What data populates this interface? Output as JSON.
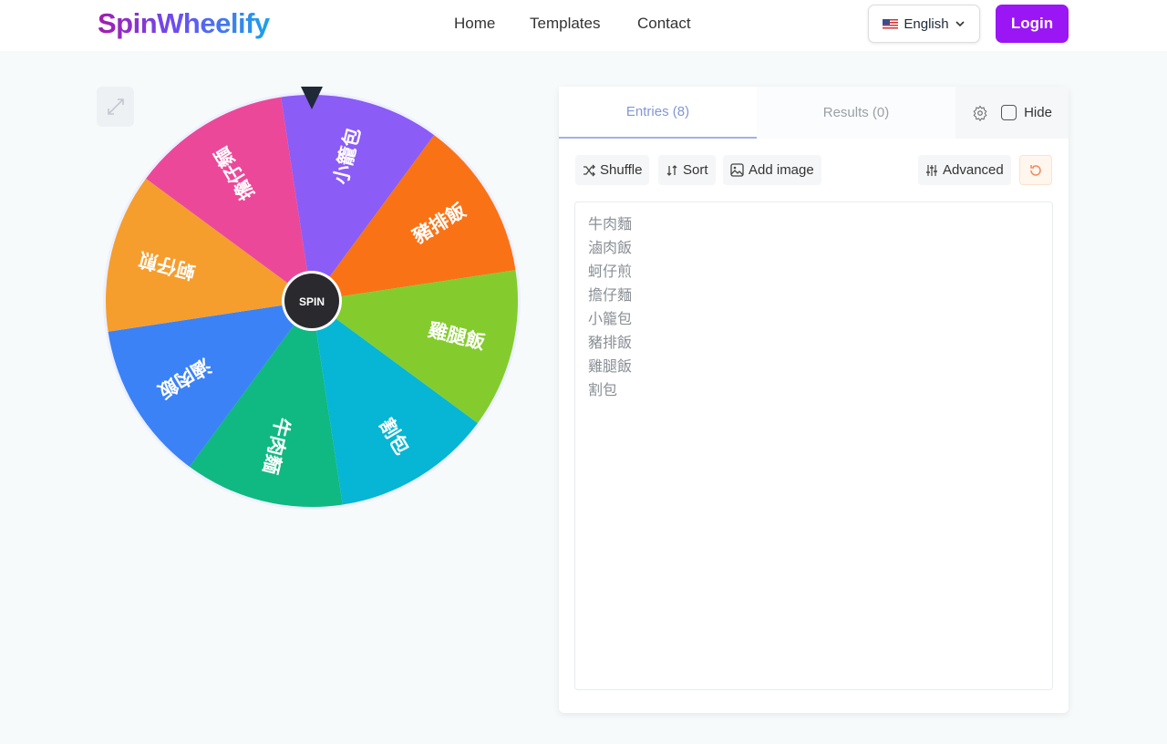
{
  "header": {
    "logo": "SpinWheelify",
    "nav": [
      "Home",
      "Templates",
      "Contact"
    ],
    "language": "English",
    "language_flag": "us-flag-icon",
    "login": "Login"
  },
  "wheel": {
    "spin_label": "SPIN",
    "entries": [
      "牛肉麵",
      "滷肉飯",
      "蚵仔煎",
      "擔仔麵",
      "小籠包",
      "豬排飯",
      "雞腿飯",
      "割包"
    ],
    "colors": [
      "#10b981",
      "#3b82f6",
      "#f59e2e",
      "#ec4899",
      "#8b5cf6",
      "#f97316",
      "#84cc2e",
      "#06b6d4"
    ],
    "pointer_color": "#1f2937"
  },
  "panel": {
    "tabs": [
      {
        "label": "Entries (8)",
        "active": true
      },
      {
        "label": "Results (0)",
        "active": false
      }
    ],
    "hide_label": "Hide",
    "hide_checked": false,
    "toolbar": {
      "shuffle": "Shuffle",
      "sort": "Sort",
      "add_image": "Add image",
      "advanced": "Advanced"
    },
    "entries_text": [
      "牛肉麵",
      "滷肉飯",
      "蚵仔煎",
      "擔仔麵",
      "小籠包",
      "豬排飯",
      "雞腿飯",
      "割包"
    ]
  },
  "colors": {
    "accent": "#9b16f5",
    "tab_active": "#8296d4"
  }
}
